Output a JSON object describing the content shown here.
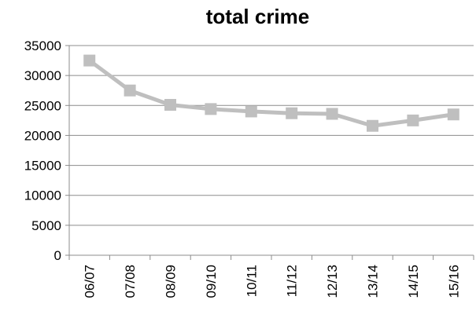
{
  "chart_data": {
    "type": "line",
    "title": "total crime",
    "xlabel": "",
    "ylabel": "",
    "categories": [
      "06/07",
      "07/08",
      "08/09",
      "09/10",
      "10/11",
      "11/12",
      "12/13",
      "13/14",
      "14/15",
      "15/16"
    ],
    "series": [
      {
        "values": [
          32500,
          27500,
          25100,
          24400,
          24000,
          23700,
          23600,
          21600,
          22500,
          23500
        ],
        "color": "#bfbfbf",
        "marker": "square"
      }
    ],
    "ylim": [
      0,
      35000
    ],
    "yticks": [
      0,
      5000,
      10000,
      15000,
      20000,
      25000,
      30000,
      35000
    ],
    "grid": true,
    "legend": "none"
  }
}
